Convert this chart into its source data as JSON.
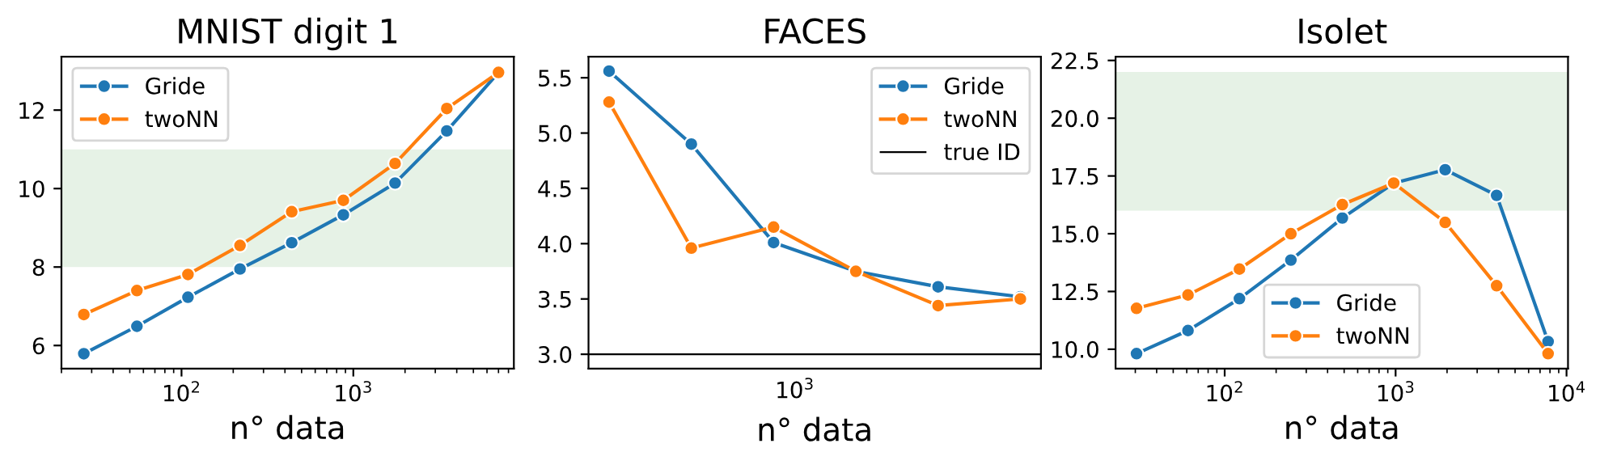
{
  "chart_data": [
    {
      "type": "line",
      "title": "MNIST digit 1",
      "xlabel": "n° data",
      "log": "x",
      "marker": "circle",
      "legend": "top left",
      "xlim": [
        20,
        8600
      ],
      "xticks": [
        {
          "value": 100,
          "label": "10$^{2}$"
        },
        {
          "value": 1000,
          "label": "10$^{3}$"
        }
      ],
      "ylim": [
        5.41,
        13.36
      ],
      "yticks": [
        6,
        8,
        10,
        12
      ],
      "bands": [
        {
          "axis": "y",
          "from": 8,
          "to": 11,
          "color": "#e6f2e6"
        }
      ],
      "series": [
        {
          "name": "Gride",
          "color": "#1f77b4",
          "x": [
            27,
            55,
            109,
            219,
            438,
            875,
            1750,
            3500,
            7000
          ],
          "values": [
            5.79,
            6.49,
            7.23,
            7.95,
            8.62,
            9.33,
            10.14,
            11.47,
            12.96
          ]
        },
        {
          "name": "twoNN",
          "color": "#ff7f0e",
          "x": [
            27,
            55,
            109,
            219,
            438,
            875,
            1750,
            3500,
            7000
          ],
          "values": [
            6.79,
            7.4,
            7.81,
            8.55,
            9.41,
            9.7,
            10.64,
            12.04,
            12.96
          ]
        }
      ]
    },
    {
      "type": "line",
      "title": "FACES",
      "xlabel": "n° data",
      "marker": "circle",
      "legend": "top right",
      "categories": [
        null,
        null,
        null,
        null,
        null,
        null
      ],
      "annotations": [
        "10$^{3}$"
      ],
      "ylim": [
        2.87,
        5.69
      ],
      "yticks": [
        {
          "value": 3.0,
          "label": "3.0"
        },
        3.5,
        {
          "value": 4.0,
          "label": "4.0"
        },
        4.5,
        {
          "value": 5.0,
          "label": "5.0"
        },
        5.5
      ],
      "ref_lines": [
        {
          "axis": "y",
          "value": 3.0,
          "label": "true ID",
          "color": "#000000"
        }
      ],
      "series": [
        {
          "name": "Gride",
          "color": "#1f77b4",
          "values": [
            5.56,
            4.9,
            4.01,
            3.75,
            3.61,
            3.52
          ]
        },
        {
          "name": "twoNN",
          "color": "#ff7f0e",
          "values": [
            5.28,
            3.96,
            4.15,
            3.75,
            3.44,
            3.5
          ]
        }
      ]
    },
    {
      "type": "line",
      "title": "Isolet",
      "xlabel": "n° data",
      "log": "x",
      "marker": "circle",
      "legend": "bottom",
      "xlim": [
        23,
        10200
      ],
      "xticks": [
        {
          "value": 100,
          "label": "10$^{2}$"
        },
        {
          "value": 1000,
          "label": "10$^{3}$"
        },
        {
          "value": 10000,
          "label": "10$^{4}$"
        }
      ],
      "ylim": [
        9.16,
        22.66
      ],
      "yticks": [
        {
          "value": 10,
          "label": "10.0"
        },
        12.5,
        {
          "value": 15,
          "label": "15.0"
        },
        17.5,
        {
          "value": 20,
          "label": "20.0"
        },
        22.5
      ],
      "bands": [
        {
          "axis": "y",
          "from": 16,
          "to": 22,
          "color": "#e6f2e6"
        }
      ],
      "series": [
        {
          "name": "Gride",
          "color": "#1f77b4",
          "x": [
            30.5,
            61,
            122,
            244,
            488,
            975,
            1950,
            3900,
            7800
          ],
          "values": [
            9.81,
            10.81,
            12.19,
            13.86,
            15.68,
            17.19,
            17.77,
            16.66,
            10.33
          ]
        },
        {
          "name": "twoNN",
          "color": "#ff7f0e",
          "x": [
            30.5,
            61,
            122,
            244,
            488,
            975,
            1950,
            3900,
            7800
          ],
          "values": [
            11.77,
            12.35,
            13.47,
            15.0,
            16.26,
            17.19,
            15.49,
            12.75,
            9.81
          ]
        }
      ]
    }
  ]
}
